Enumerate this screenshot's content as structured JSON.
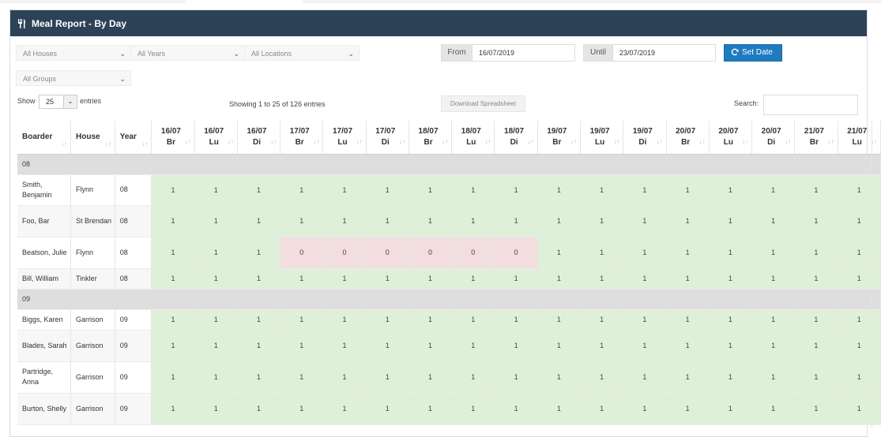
{
  "panel": {
    "title": "Meal Report - By Day",
    "icon": "cutlery-icon"
  },
  "filters": {
    "houses": "All Houses",
    "years": "All Years",
    "locations": "All Locations",
    "groups": "All Groups"
  },
  "date_range": {
    "from_label": "From",
    "from_value": "16/07/2019",
    "until_label": "Until",
    "until_value": "23/07/2019",
    "set_date_label": "Set Date"
  },
  "table_controls": {
    "show_label": "Show",
    "page_length": "25",
    "entries_label": "entries",
    "info": "Showing 1 to 25 of 126 entries",
    "download_label": "Download Spreadsheet",
    "search_label": "Search:",
    "search_value": ""
  },
  "columns": {
    "boarder": "Boarder",
    "house": "House",
    "year": "Year",
    "days": [
      {
        "date": "16/07",
        "meal": "Br"
      },
      {
        "date": "16/07",
        "meal": "Lu"
      },
      {
        "date": "16/07",
        "meal": "Di"
      },
      {
        "date": "17/07",
        "meal": "Br"
      },
      {
        "date": "17/07",
        "meal": "Lu"
      },
      {
        "date": "17/07",
        "meal": "Di"
      },
      {
        "date": "18/07",
        "meal": "Br"
      },
      {
        "date": "18/07",
        "meal": "Lu"
      },
      {
        "date": "18/07",
        "meal": "Di"
      },
      {
        "date": "19/07",
        "meal": "Br"
      },
      {
        "date": "19/07",
        "meal": "Lu"
      },
      {
        "date": "19/07",
        "meal": "Di"
      },
      {
        "date": "20/07",
        "meal": "Br"
      },
      {
        "date": "20/07",
        "meal": "Lu"
      },
      {
        "date": "20/07",
        "meal": "Di"
      },
      {
        "date": "21/07",
        "meal": "Br"
      },
      {
        "date": "21/07",
        "meal": "Lu"
      }
    ]
  },
  "rows": [
    {
      "group": "08"
    },
    {
      "boarder": "Smith, Benjamin",
      "house": "Flynn",
      "year": "08",
      "values": [
        "1",
        "1",
        "1",
        "1",
        "1",
        "1",
        "1",
        "1",
        "1",
        "1",
        "1",
        "1",
        "1",
        "1",
        "1",
        "1",
        "1"
      ]
    },
    {
      "boarder": "Foo, Bar",
      "house": "St Brendan",
      "year": "08",
      "values": [
        "1",
        "1",
        "1",
        "1",
        "1",
        "1",
        "1",
        "1",
        "1",
        "1",
        "1",
        "1",
        "1",
        "1",
        "1",
        "1",
        "1"
      ]
    },
    {
      "boarder": "Beatson, Julie",
      "house": "Flynn",
      "year": "08",
      "values": [
        "1",
        "1",
        "1",
        "0",
        "0",
        "0",
        "0",
        "0",
        "0",
        "1",
        "1",
        "1",
        "1",
        "1",
        "1",
        "1",
        "1"
      ]
    },
    {
      "boarder": "Bill, William",
      "house": "Tinkler",
      "year": "08",
      "values": [
        "1",
        "1",
        "1",
        "1",
        "1",
        "1",
        "1",
        "1",
        "1",
        "1",
        "1",
        "1",
        "1",
        "1",
        "1",
        "1",
        "1"
      ]
    },
    {
      "group": "09"
    },
    {
      "boarder": "Biggs, Karen",
      "house": "Garrison",
      "year": "09",
      "values": [
        "1",
        "1",
        "1",
        "1",
        "1",
        "1",
        "1",
        "1",
        "1",
        "1",
        "1",
        "1",
        "1",
        "1",
        "1",
        "1",
        "1"
      ]
    },
    {
      "boarder": "Blades, Sarah",
      "house": "Garrison",
      "year": "09",
      "values": [
        "1",
        "1",
        "1",
        "1",
        "1",
        "1",
        "1",
        "1",
        "1",
        "1",
        "1",
        "1",
        "1",
        "1",
        "1",
        "1",
        "1"
      ]
    },
    {
      "boarder": "Partridge, Anna",
      "house": "Garrison",
      "year": "09",
      "values": [
        "1",
        "1",
        "1",
        "1",
        "1",
        "1",
        "1",
        "1",
        "1",
        "1",
        "1",
        "1",
        "1",
        "1",
        "1",
        "1",
        "1"
      ]
    },
    {
      "boarder": "Burton, Shelly",
      "house": "Garrison",
      "year": "09",
      "values": [
        "1",
        "1",
        "1",
        "1",
        "1",
        "1",
        "1",
        "1",
        "1",
        "1",
        "1",
        "1",
        "1",
        "1",
        "1",
        "1",
        "1"
      ]
    }
  ],
  "colors": {
    "header_bg": "#2d4256",
    "present": "#dff0d8",
    "absent": "#f2dede",
    "group_bg": "#dedede",
    "accent": "#1f7bc0"
  }
}
